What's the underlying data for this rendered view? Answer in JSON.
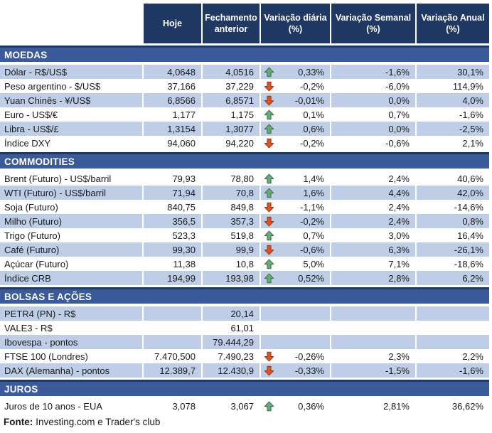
{
  "chart_data": {
    "type": "table",
    "columns": [
      "Hoje",
      "Fechamento anterior",
      "Variação diária (%)",
      "Variação Semanal (%)",
      "Variação Anual (%)"
    ],
    "sections": [
      {
        "title": "MOEDAS",
        "stripe_start": "light",
        "rows": [
          {
            "label": "Dólar - R$/US$",
            "hoje": "4,0648",
            "anterior": "4,0516",
            "arrow": "up",
            "diaria": "0,33%",
            "semanal": "-1,6%",
            "anual": "30,1%"
          },
          {
            "label": "Peso argentino - $/US$",
            "hoje": "37,166",
            "anterior": "37,229",
            "arrow": "down",
            "diaria": "-0,2%",
            "semanal": "-6,0%",
            "anual": "114,9%"
          },
          {
            "label": "Yuan Chinês - ¥/US$",
            "hoje": "6,8566",
            "anterior": "6,8571",
            "arrow": "down",
            "diaria": "-0,01%",
            "semanal": "0,0%",
            "anual": "4,0%"
          },
          {
            "label": "Euro - US$/€",
            "hoje": "1,177",
            "anterior": "1,175",
            "arrow": "up",
            "diaria": "0,1%",
            "semanal": "0,7%",
            "anual": "-1,6%"
          },
          {
            "label": "Libra - US$/£",
            "hoje": "1,3154",
            "anterior": "1,3077",
            "arrow": "up",
            "diaria": "0,6%",
            "semanal": "0,0%",
            "anual": "-2,5%"
          },
          {
            "label": "Índice DXY",
            "hoje": "94,060",
            "anterior": "94,220",
            "arrow": "down",
            "diaria": "-0,2%",
            "semanal": "-0,6%",
            "anual": "2,1%"
          }
        ]
      },
      {
        "title": "COMMODITIES",
        "stripe_start": "white",
        "rows": [
          {
            "label": "Brent (Futuro) - US$/barril",
            "hoje": "79,93",
            "anterior": "78,80",
            "arrow": "up",
            "diaria": "1,4%",
            "semanal": "2,4%",
            "anual": "40,6%"
          },
          {
            "label": "WTI (Futuro) - US$/barril",
            "hoje": "71,94",
            "anterior": "70,8",
            "arrow": "up",
            "diaria": "1,6%",
            "semanal": "4,4%",
            "anual": "42,0%"
          },
          {
            "label": "Soja (Futuro)",
            "hoje": "840,75",
            "anterior": "849,8",
            "arrow": "down",
            "diaria": "-1,1%",
            "semanal": "2,4%",
            "anual": "-14,6%"
          },
          {
            "label": "Milho (Futuro)",
            "hoje": "356,5",
            "anterior": "357,3",
            "arrow": "down",
            "diaria": "-0,2%",
            "semanal": "2,4%",
            "anual": "0,8%"
          },
          {
            "label": "Trigo (Futuro)",
            "hoje": "523,3",
            "anterior": "519,8",
            "arrow": "up",
            "diaria": "0,7%",
            "semanal": "3,0%",
            "anual": "16,4%"
          },
          {
            "label": "Café (Futuro)",
            "hoje": "99,30",
            "anterior": "99,9",
            "arrow": "down",
            "diaria": "-0,6%",
            "semanal": "6,3%",
            "anual": "-26,1%"
          },
          {
            "label": "Açúcar (Futuro)",
            "hoje": "11,38",
            "anterior": "10,8",
            "arrow": "up",
            "diaria": "5,0%",
            "semanal": "7,1%",
            "anual": "-18,6%"
          },
          {
            "label": "Índice CRB",
            "hoje": "194,99",
            "anterior": "193,98",
            "arrow": "up",
            "diaria": "0,52%",
            "semanal": "2,8%",
            "anual": "6,2%"
          }
        ]
      },
      {
        "title": "BOLSAS E AÇÕES",
        "stripe_start": "light",
        "rows": [
          {
            "label": "PETR4 (PN) - R$",
            "hoje": "",
            "anterior": "20,14",
            "arrow": "",
            "diaria": "",
            "semanal": "",
            "anual": ""
          },
          {
            "label": "VALE3 - R$",
            "hoje": "",
            "anterior": "61,01",
            "arrow": "",
            "diaria": "",
            "semanal": "",
            "anual": ""
          },
          {
            "label": "Ibovespa - pontos",
            "hoje": "",
            "anterior": "79.444,29",
            "arrow": "",
            "diaria": "",
            "semanal": "",
            "anual": ""
          },
          {
            "label": "FTSE 100 (Londres)",
            "hoje": "7.470,500",
            "anterior": "7.490,23",
            "arrow": "down",
            "diaria": "-0,26%",
            "semanal": "2,3%",
            "anual": "2,2%"
          },
          {
            "label": "DAX (Alemanha) - pontos",
            "hoje": "12.389,7",
            "anterior": "12.430,9",
            "arrow": "down",
            "diaria": "-0,33%",
            "semanal": "-1,5%",
            "anual": "-1,6%"
          }
        ]
      },
      {
        "title": "JUROS",
        "stripe_start": "white",
        "rows": [
          {
            "label": "Juros de 10 anos - EUA",
            "hoje": "3,078",
            "anterior": "3,067",
            "arrow": "up",
            "diaria": "0,36%",
            "semanal": "2,81%",
            "anual": "36,62%"
          }
        ]
      }
    ]
  },
  "footer": {
    "label": "Fonte:",
    "text": "Investing.com e Trader's club"
  },
  "colors": {
    "header_bg": "#1F3864",
    "section_bg": "#3B5A9A",
    "section_border": "#1F3864",
    "stripe_light": "#BFCEE6",
    "arrow_up_fill": "#6CA877",
    "arrow_up_stroke": "#397A4B",
    "arrow_down_fill": "#DB5426",
    "arrow_down_stroke": "#A33A12",
    "text": "#1A1A1A"
  }
}
